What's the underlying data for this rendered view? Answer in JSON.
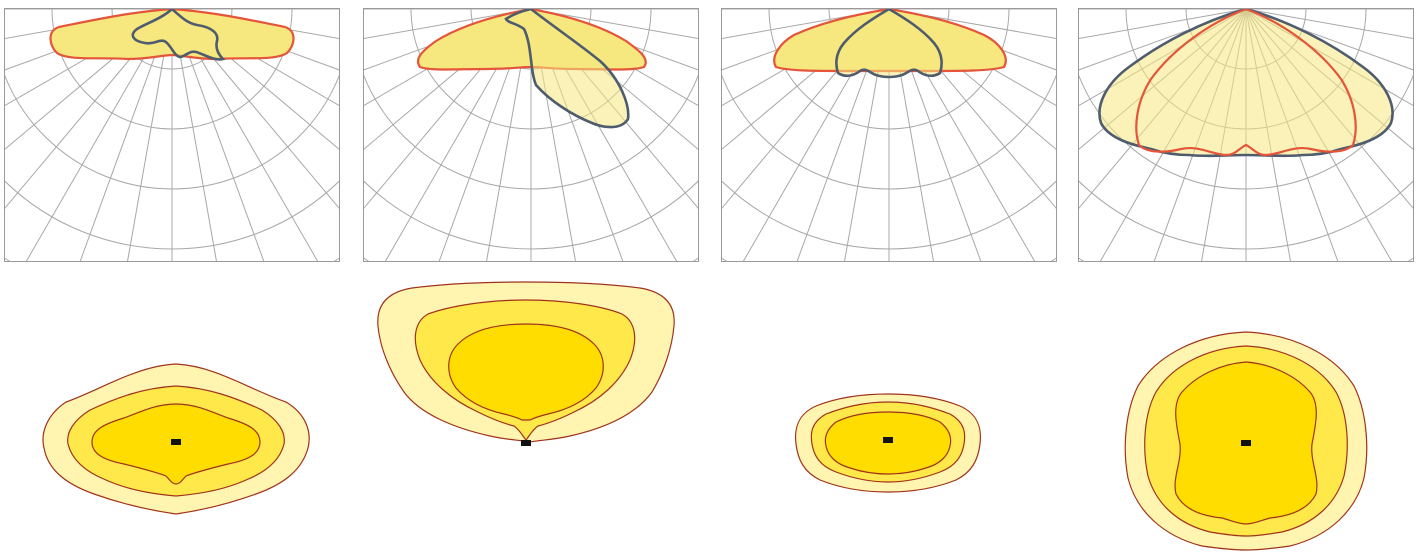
{
  "colors": {
    "panel_border": "#9a9a9a",
    "grid": "#a8a8a8",
    "curve_c0_c180": "#e4553a",
    "curve_c90_c270": "#4f5c6e",
    "lit_fill": "#f6e77e",
    "iso_outer": "#fff4b0",
    "iso_middle": "#ffe94a",
    "iso_inner": "#ffdd00",
    "iso_stroke": "#a0331c",
    "luminaire_marker": "#111111"
  },
  "polar_diagrams": [
    {
      "id": "luminaire-1"
    },
    {
      "id": "luminaire-2"
    },
    {
      "id": "luminaire-3"
    },
    {
      "id": "luminaire-4"
    }
  ],
  "isolux_diagrams": [
    {
      "id": "luminaire-1-isolux",
      "levels": 3
    },
    {
      "id": "luminaire-2-isolux",
      "levels": 3
    },
    {
      "id": "luminaire-3-isolux",
      "levels": 3
    },
    {
      "id": "luminaire-4-isolux",
      "levels": 3
    }
  ]
}
